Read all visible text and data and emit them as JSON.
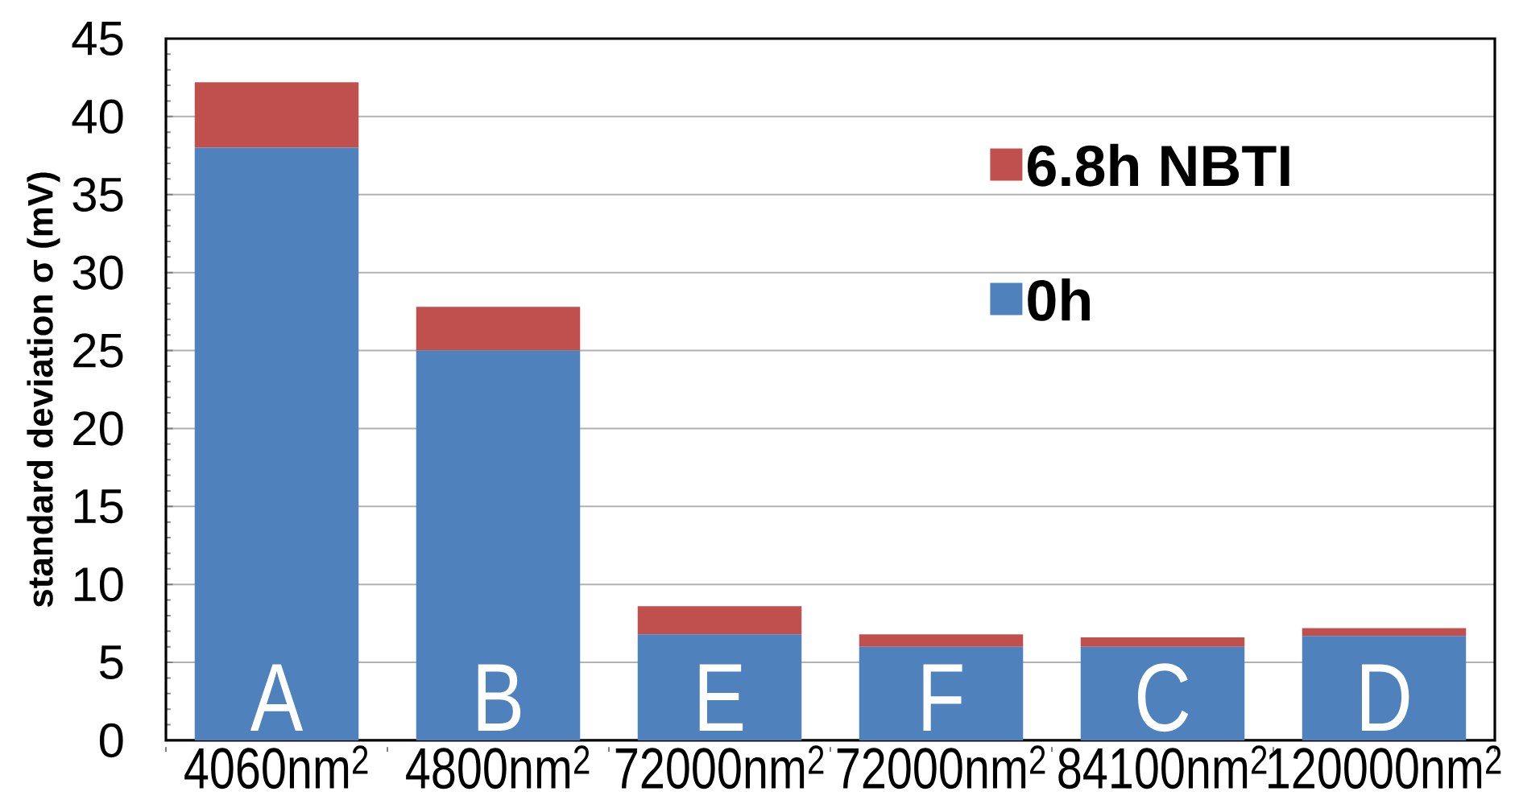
{
  "chart_data": {
    "type": "bar",
    "stacked": true,
    "ylabel": "standard deviation σ (mV)",
    "categories": [
      "4060nm$^{2}$",
      "4800nm$^{2}$",
      "72000nm$^{2}$",
      "72000nm$^{2}$",
      "84100nm$^{2}$",
      "120000nm$^{2}$"
    ],
    "series": [
      {
        "name": "0h",
        "color": "#4f81bd",
        "values": [
          38,
          25,
          6.8,
          6,
          6,
          6.7
        ]
      },
      {
        "name": "6.8h NBTI",
        "color": "#c0504d",
        "values": [
          4.2,
          2.8,
          1.8,
          0.8,
          0.6,
          0.5
        ]
      }
    ],
    "ylim": [
      0,
      45
    ],
    "yticks": [
      0,
      5,
      10,
      15,
      20,
      25,
      30,
      35,
      40,
      45
    ],
    "grid": "y",
    "legend": "top right",
    "annotations": [
      "A",
      "B",
      "E",
      "F",
      "C",
      "D"
    ]
  }
}
